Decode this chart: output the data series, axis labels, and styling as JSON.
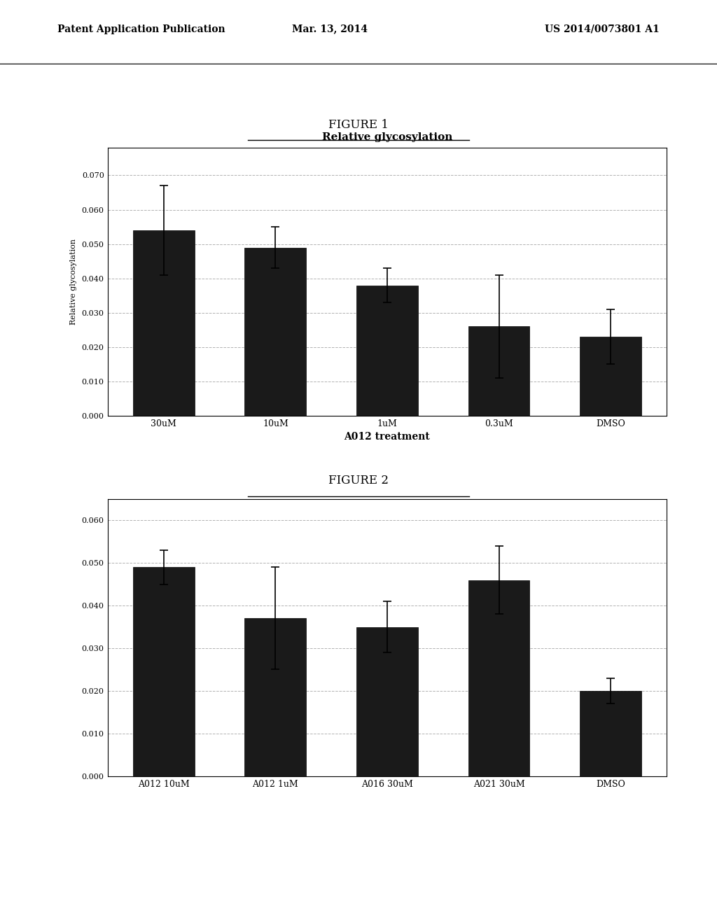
{
  "fig1": {
    "title": "Relative glycosylation",
    "xlabel": "A012 treatment",
    "ylabel": "Relative glycosylation",
    "categories": [
      "30uM",
      "10uM",
      "1uM",
      "0.3uM",
      "DMSO"
    ],
    "values": [
      0.054,
      0.049,
      0.038,
      0.026,
      0.023
    ],
    "errors": [
      0.013,
      0.006,
      0.005,
      0.015,
      0.008
    ],
    "ylim": [
      0.0,
      0.078
    ],
    "yticks": [
      0.0,
      0.01,
      0.02,
      0.03,
      0.04,
      0.05,
      0.06,
      0.07
    ],
    "ytick_labels": [
      "0.000",
      "0.010",
      "0.020",
      "0.030",
      "0.040",
      "0.050",
      "0.060",
      "0.070"
    ],
    "bar_color": "#1a1a1a",
    "error_color": "#000000",
    "figure_label": "FIGURE 1"
  },
  "fig2": {
    "xlabel": "",
    "ylabel": "",
    "categories": [
      "A012 10uM",
      "A012 1uM",
      "A016 30uM",
      "A021 30uM",
      "DMSO"
    ],
    "values": [
      0.049,
      0.037,
      0.035,
      0.046,
      0.02
    ],
    "errors": [
      0.004,
      0.012,
      0.006,
      0.008,
      0.003
    ],
    "ylim": [
      0.0,
      0.065
    ],
    "yticks": [
      0.0,
      0.01,
      0.02,
      0.03,
      0.04,
      0.05,
      0.06
    ],
    "ytick_labels": [
      "0.000",
      "0.010",
      "0.020",
      "0.030",
      "0.040",
      "0.050",
      "0.060"
    ],
    "bar_color": "#1a1a1a",
    "error_color": "#000000",
    "figure_label": "FIGURE 2"
  },
  "header_left": "Patent Application Publication",
  "header_center": "Mar. 13, 2014",
  "header_right": "US 2014/0073801 A1",
  "bg_color": "#ffffff",
  "text_color": "#000000",
  "grid_color": "#aaaaaa",
  "bar_width": 0.55
}
